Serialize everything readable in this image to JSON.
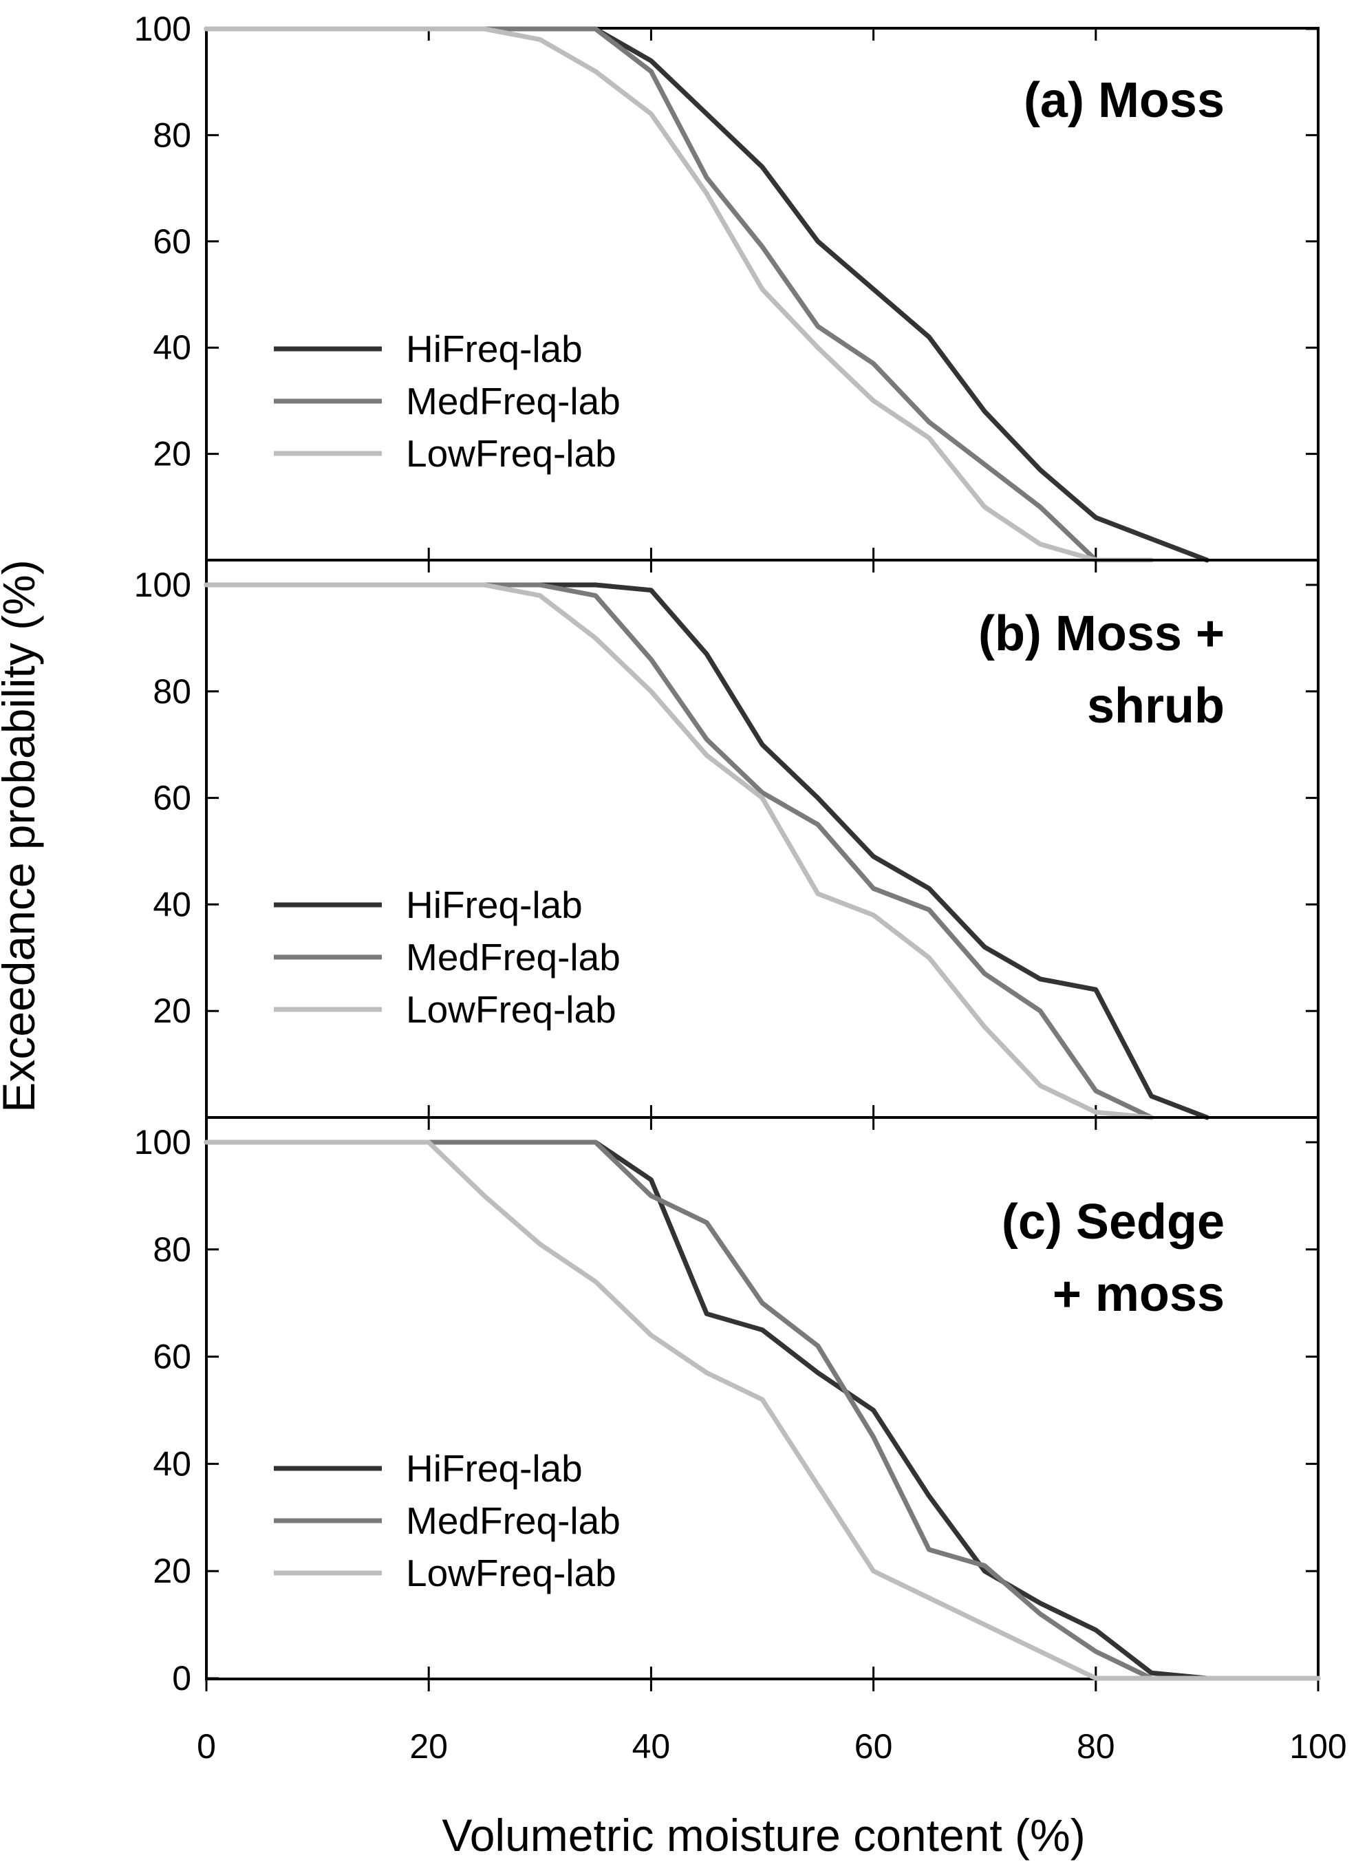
{
  "figure": {
    "ylabel": "Exceedance probability (%)",
    "xlabel": "Volumetric moisture  content (%)"
  },
  "colors": {
    "HiFreq-lab": "#333333",
    "MedFreq-lab": "#7a7a7a",
    "LowFreq-lab": "#bdbdbd"
  },
  "chart_data": [
    {
      "type": "line",
      "title_lines": [
        "(a) Moss"
      ],
      "xlim": [
        0,
        100
      ],
      "ylim": [
        0,
        100
      ],
      "y_ticks": [
        "100",
        "80",
        "60",
        "40",
        "20"
      ],
      "legend_placement": "left-lower",
      "legend": [
        "HiFreq-lab",
        "MedFreq-lab",
        "LowFreq-lab"
      ],
      "series": [
        {
          "name": "HiFreq-lab",
          "x": [
            0,
            35,
            40,
            45,
            50,
            55,
            60,
            65,
            70,
            75,
            80,
            85,
            90
          ],
          "y": [
            100,
            100,
            94,
            84,
            74,
            60,
            51,
            42,
            28,
            17,
            8,
            4,
            0
          ]
        },
        {
          "name": "MedFreq-lab",
          "x": [
            0,
            35,
            40,
            45,
            50,
            55,
            60,
            65,
            70,
            75,
            80
          ],
          "y": [
            100,
            100,
            92,
            72,
            59,
            44,
            37,
            26,
            18,
            10,
            0
          ]
        },
        {
          "name": "LowFreq-lab",
          "x": [
            0,
            25,
            30,
            35,
            40,
            45,
            50,
            55,
            60,
            65,
            70,
            75,
            80,
            85
          ],
          "y": [
            100,
            100,
            98,
            92,
            84,
            69,
            51,
            40,
            30,
            23,
            10,
            3,
            0,
            0
          ]
        }
      ]
    },
    {
      "type": "line",
      "title_lines": [
        "(b) Moss +",
        "shrub"
      ],
      "xlim": [
        0,
        100
      ],
      "ylim": [
        0,
        100
      ],
      "y_ticks": [
        "100",
        "80",
        "60",
        "40",
        "20"
      ],
      "legend_placement": "left-lower",
      "legend": [
        "HiFreq-lab",
        "MedFreq-lab",
        "LowFreq-lab"
      ],
      "series": [
        {
          "name": "HiFreq-lab",
          "x": [
            0,
            35,
            40,
            45,
            50,
            55,
            60,
            65,
            70,
            75,
            80,
            85,
            90
          ],
          "y": [
            100,
            100,
            99,
            87,
            70,
            60,
            49,
            43,
            32,
            26,
            24,
            4,
            0
          ]
        },
        {
          "name": "MedFreq-lab",
          "x": [
            0,
            30,
            35,
            40,
            45,
            50,
            55,
            60,
            65,
            70,
            75,
            80,
            85
          ],
          "y": [
            100,
            100,
            98,
            86,
            71,
            61,
            55,
            43,
            39,
            27,
            20,
            5,
            0
          ]
        },
        {
          "name": "LowFreq-lab",
          "x": [
            0,
            25,
            30,
            35,
            40,
            45,
            50,
            55,
            60,
            65,
            70,
            75,
            80,
            85
          ],
          "y": [
            100,
            100,
            98,
            90,
            80,
            68,
            60,
            42,
            38,
            30,
            17,
            6,
            1,
            0
          ]
        }
      ]
    },
    {
      "type": "line",
      "title_lines": [
        "(c) Sedge",
        "+ moss"
      ],
      "xlim": [
        0,
        100
      ],
      "ylim": [
        0,
        100
      ],
      "y_ticks": [
        "100",
        "80",
        "60",
        "40",
        "20",
        "0"
      ],
      "x_ticks": [
        "0",
        "20",
        "40",
        "60",
        "80",
        "100"
      ],
      "legend_placement": "left-lower",
      "legend": [
        "HiFreq-lab",
        "MedFreq-lab",
        "LowFreq-lab"
      ],
      "series": [
        {
          "name": "HiFreq-lab",
          "x": [
            0,
            35,
            40,
            45,
            50,
            55,
            60,
            65,
            70,
            75,
            80,
            85,
            90,
            100
          ],
          "y": [
            100,
            100,
            93,
            68,
            65,
            57,
            50,
            34,
            20,
            14,
            9,
            1,
            0,
            0
          ]
        },
        {
          "name": "MedFreq-lab",
          "x": [
            0,
            35,
            40,
            45,
            50,
            55,
            60,
            65,
            70,
            75,
            80,
            85,
            90,
            100
          ],
          "y": [
            100,
            100,
            90,
            85,
            70,
            62,
            45,
            24,
            21,
            12,
            5,
            0,
            0,
            0
          ]
        },
        {
          "name": "LowFreq-lab",
          "x": [
            0,
            20,
            25,
            30,
            35,
            40,
            45,
            50,
            55,
            60,
            65,
            70,
            75,
            80,
            85,
            90,
            100
          ],
          "y": [
            100,
            100,
            90,
            81,
            74,
            64,
            57,
            52,
            36,
            20,
            15,
            10,
            5,
            0,
            0,
            0,
            0
          ]
        }
      ]
    }
  ]
}
